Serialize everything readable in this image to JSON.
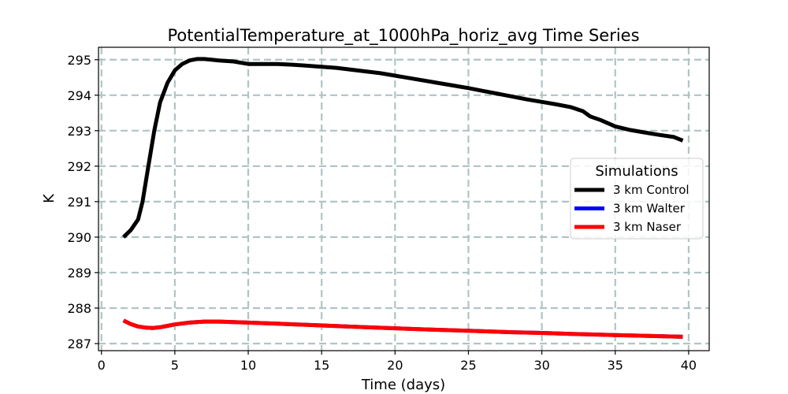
{
  "chart_data": {
    "type": "line",
    "title": "PotentialTemperature_at_1000hPa_horiz_avg Time Series",
    "xlabel": "Time (days)",
    "ylabel": "K",
    "xlim": [
      -0.2,
      41.4
    ],
    "ylim": [
      286.8,
      295.35
    ],
    "xticks": [
      0,
      5,
      10,
      15,
      20,
      25,
      30,
      35,
      40
    ],
    "yticks": [
      287,
      288,
      289,
      290,
      291,
      292,
      293,
      294,
      295
    ],
    "grid": true,
    "legend": {
      "title": "Simulations",
      "placement": "center-right"
    },
    "series": [
      {
        "name": "3 km Control",
        "color": "#000000",
        "x": [
          1.5,
          2,
          2.5,
          2.8,
          3.2,
          3.6,
          4,
          4.5,
          5,
          5.5,
          6,
          6.5,
          7,
          7.5,
          8,
          9,
          10,
          11,
          12,
          13,
          14,
          15,
          16,
          17,
          18,
          19,
          20,
          21,
          22,
          23,
          24,
          25,
          26,
          27,
          28,
          29,
          30,
          31,
          32,
          32.8,
          33.3,
          34,
          35,
          36,
          37,
          38,
          39,
          39.6
        ],
        "y": [
          290.0,
          290.2,
          290.5,
          291.0,
          292.0,
          293.0,
          293.8,
          294.35,
          294.7,
          294.88,
          294.98,
          295.02,
          295.02,
          295.0,
          294.98,
          294.95,
          294.88,
          294.88,
          294.88,
          294.86,
          294.83,
          294.8,
          294.77,
          294.72,
          294.67,
          294.62,
          294.55,
          294.48,
          294.41,
          294.34,
          294.27,
          294.2,
          294.12,
          294.04,
          293.96,
          293.88,
          293.81,
          293.74,
          293.66,
          293.55,
          293.4,
          293.3,
          293.12,
          293.02,
          292.95,
          292.88,
          292.82,
          292.72
        ]
      },
      {
        "name": "3 km Walter",
        "color": "#0000ff",
        "x": [
          1.5,
          2,
          2.5,
          3,
          3.5,
          4,
          4.5,
          5,
          6,
          7,
          8,
          10,
          12,
          15,
          18,
          20,
          22,
          25,
          28,
          30,
          32,
          35,
          37,
          39.6
        ],
        "y": [
          287.65,
          287.55,
          287.48,
          287.45,
          287.44,
          287.46,
          287.5,
          287.54,
          287.59,
          287.62,
          287.62,
          287.59,
          287.56,
          287.51,
          287.46,
          287.43,
          287.4,
          287.36,
          287.32,
          287.3,
          287.27,
          287.24,
          287.22,
          287.19
        ]
      },
      {
        "name": "3 km Naser",
        "color": "#ff0000",
        "x": [
          1.5,
          2,
          2.5,
          3,
          3.5,
          4,
          4.5,
          5,
          6,
          7,
          8,
          10,
          12,
          15,
          18,
          20,
          22,
          25,
          28,
          30,
          32,
          35,
          37,
          39.6
        ],
        "y": [
          287.65,
          287.55,
          287.48,
          287.45,
          287.44,
          287.46,
          287.5,
          287.54,
          287.59,
          287.62,
          287.62,
          287.59,
          287.56,
          287.51,
          287.46,
          287.43,
          287.4,
          287.36,
          287.32,
          287.3,
          287.27,
          287.24,
          287.22,
          287.19
        ]
      }
    ]
  }
}
